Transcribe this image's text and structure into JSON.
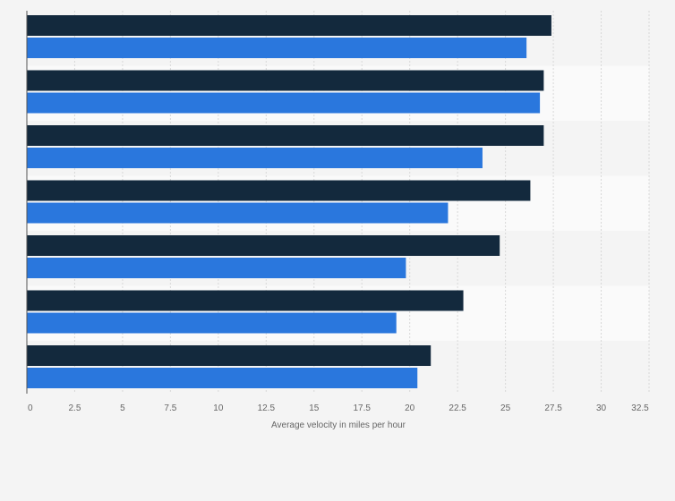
{
  "chart_data": {
    "type": "bar",
    "orientation": "horizontal",
    "title": "",
    "xlabel": "Average velocity in miles per hour",
    "ylabel": "",
    "xlim": [
      0,
      32.5
    ],
    "x_ticks": [
      "0",
      "2.5",
      "5",
      "7.5",
      "10",
      "12.5",
      "15",
      "17.5",
      "20",
      "22.5",
      "25",
      "27.5",
      "30",
      "32.5"
    ],
    "grid": true,
    "legend": "none",
    "category_count": 7,
    "series": [
      {
        "color": "#13293d",
        "values": [
          27.4,
          27.0,
          27.0,
          26.3,
          24.7,
          22.8,
          21.1
        ]
      },
      {
        "color": "#2a77dd",
        "values": [
          26.1,
          26.8,
          23.8,
          22.0,
          19.8,
          19.3,
          20.4
        ]
      }
    ]
  }
}
